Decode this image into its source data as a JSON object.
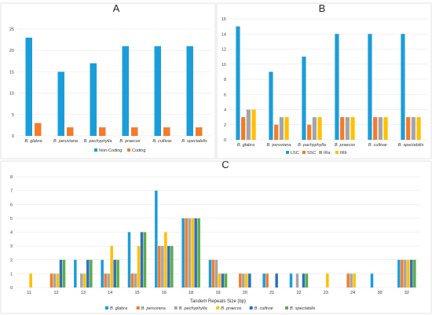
{
  "chart_data": [
    {
      "panel": "A",
      "type": "bar",
      "categories": [
        "B. glabra",
        "B. peruviana",
        "B. pachyphylla",
        "B. praecox",
        "B. cultivar",
        "B. spectabilis"
      ],
      "series": [
        {
          "name": "Non-Coding",
          "values": [
            23,
            15,
            17,
            21,
            21,
            21
          ]
        },
        {
          "name": "Coding",
          "values": [
            3,
            2,
            2,
            2,
            2,
            2
          ]
        }
      ],
      "ylim": [
        0,
        25
      ],
      "yticks": [
        0,
        5,
        10,
        15,
        20,
        25
      ],
      "grid": true,
      "legend": "bottom"
    },
    {
      "panel": "B",
      "type": "bar",
      "categories": [
        "B. glabra",
        "B. peruviana",
        "B. pachyphylla",
        "B. praecox",
        "B. cultivar",
        "B. spectabilis"
      ],
      "series": [
        {
          "name": "LSC",
          "values": [
            15,
            9,
            11,
            14,
            14,
            14
          ]
        },
        {
          "name": "SSC",
          "values": [
            3,
            2,
            2,
            3,
            3,
            3
          ]
        },
        {
          "name": "IRa",
          "values": [
            4,
            3,
            3,
            3,
            3,
            3
          ]
        },
        {
          "name": "IRb",
          "values": [
            4,
            3,
            3,
            3,
            3,
            3
          ]
        }
      ],
      "ylim": [
        0,
        16
      ],
      "yticks": [
        0,
        2,
        4,
        6,
        8,
        10,
        12,
        14,
        16
      ],
      "grid": true,
      "legend": "bottom"
    },
    {
      "panel": "C",
      "type": "bar",
      "categories": [
        "11",
        "12",
        "13",
        "14",
        "15",
        "16",
        "18",
        "19",
        "20",
        "21",
        "22",
        "23",
        "24",
        "30",
        "32"
      ],
      "series": [
        {
          "name": "B. glabra",
          "values": [
            0,
            0,
            2,
            2,
            4,
            7,
            5,
            2,
            0,
            1,
            1,
            0,
            0,
            1,
            2
          ]
        },
        {
          "name": "B. peruviana",
          "values": [
            0,
            1,
            0,
            1,
            1,
            3,
            5,
            2,
            1,
            1,
            0,
            0,
            1,
            0,
            2
          ]
        },
        {
          "name": "B. pachyphylla",
          "values": [
            0,
            1,
            1,
            1,
            1,
            3,
            5,
            2,
            1,
            0,
            1,
            0,
            1,
            0,
            2
          ]
        },
        {
          "name": "B. praecox",
          "values": [
            1,
            1,
            1,
            3,
            3,
            4,
            5,
            1,
            1,
            0,
            0,
            1,
            1,
            0,
            2
          ]
        },
        {
          "name": "B. cultivar",
          "values": [
            0,
            2,
            2,
            2,
            4,
            3,
            5,
            1,
            1,
            1,
            1,
            0,
            0,
            0,
            2
          ]
        },
        {
          "name": "B. spectabilis",
          "values": [
            0,
            2,
            2,
            2,
            4,
            3,
            5,
            1,
            0,
            0,
            1,
            0,
            0,
            0,
            2
          ]
        }
      ],
      "xlabel": "Tandem Repeats Size (bp)",
      "ylim": [
        0,
        8
      ],
      "yticks": [
        0,
        1,
        2,
        3,
        4,
        5,
        6,
        7,
        8
      ],
      "grid": true,
      "legend": "bottom"
    }
  ],
  "colors": {
    "A": [
      "#1B9DDA",
      "#F47B2A"
    ],
    "B": [
      "#1B9DDA",
      "#F47B2A",
      "#A5A5A5",
      "#FFC000"
    ],
    "C": [
      "#1B9DDA",
      "#F47B2A",
      "#A5A5A5",
      "#FFC000",
      "#2E6EC0",
      "#5BAE47"
    ]
  }
}
